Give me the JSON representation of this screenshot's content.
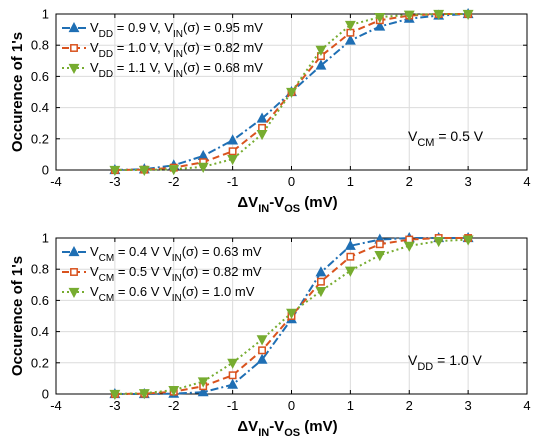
{
  "chart_data": [
    {
      "type": "line",
      "x": [
        -3,
        -2.5,
        -2,
        -1.5,
        -1,
        -0.5,
        0,
        0.5,
        1,
        1.5,
        2,
        2.5,
        3
      ],
      "xlim": [
        -4,
        4
      ],
      "ylim": [
        0,
        1
      ],
      "xticks": [
        "-4",
        "-3",
        "-2",
        "-1",
        "0",
        "1",
        "2",
        "3",
        "4"
      ],
      "yticks": [
        "0",
        "0.2",
        "0.4",
        "0.6",
        "0.8",
        "1"
      ],
      "xlabel": {
        "main": "ΔV",
        "sub1": "IN",
        "mid": "-V",
        "sub2": "OS",
        "unit": " (mV)"
      },
      "ylabel": "Occurence of 1's",
      "grid": true,
      "legend_position": "top-left",
      "annotation": {
        "main": "V",
        "sub": "CM",
        "rest": " = 0.5 V"
      },
      "series": [
        {
          "label_parts": {
            "a": "V",
            "a_sub": "DD",
            "b": " = 0.9 V, V",
            "b_sub": "IN",
            "c": "(σ) = 0.95 mV"
          },
          "color": "#1f6fb4",
          "marker": "triangle-up",
          "dash": "8,3,2,3",
          "values": [
            0,
            0.005,
            0.03,
            0.09,
            0.19,
            0.33,
            0.5,
            0.67,
            0.83,
            0.92,
            0.97,
            0.99,
            1.0
          ]
        },
        {
          "label_parts": {
            "a": "V",
            "a_sub": "DD",
            "b": " = 1.0 V, V",
            "b_sub": "IN",
            "c": "(σ) = 0.82 mV"
          },
          "color": "#d9531e",
          "marker": "square",
          "dash": "7,4",
          "values": [
            0,
            0.002,
            0.015,
            0.05,
            0.12,
            0.27,
            0.5,
            0.73,
            0.88,
            0.96,
            0.99,
            1.0,
            1.0
          ]
        },
        {
          "label_parts": {
            "a": "V",
            "a_sub": "DD",
            "b": " = 1.1 V, V",
            "b_sub": "IN",
            "c": "(σ) = 0.68 mV"
          },
          "color": "#77ac30",
          "marker": "triangle-down",
          "dash": "2,3",
          "values": [
            0,
            0,
            0.005,
            0.02,
            0.07,
            0.23,
            0.5,
            0.77,
            0.93,
            0.98,
            0.995,
            1.0,
            1.0
          ]
        }
      ]
    },
    {
      "type": "line",
      "x": [
        -3,
        -2.5,
        -2,
        -1.5,
        -1,
        -0.5,
        0,
        0.5,
        1,
        1.5,
        2,
        2.5,
        3
      ],
      "xlim": [
        -4,
        4
      ],
      "ylim": [
        0,
        1
      ],
      "xticks": [
        "-4",
        "-3",
        "-2",
        "-1",
        "0",
        "1",
        "2",
        "3",
        "4"
      ],
      "yticks": [
        "0",
        "0.2",
        "0.4",
        "0.6",
        "0.8",
        "1"
      ],
      "xlabel": {
        "main": "ΔV",
        "sub1": "IN",
        "mid": "-V",
        "sub2": "OS",
        "unit": " (mV)"
      },
      "ylabel": "Occurence of 1's",
      "grid": true,
      "legend_position": "top-left",
      "annotation": {
        "main": "V",
        "sub": "DD",
        "rest": " = 1.0 V"
      },
      "series": [
        {
          "label_parts": {
            "a": "V",
            "a_sub": "CM",
            "b": " = 0.4 V V",
            "b_sub": "IN",
            "c": "(σ) = 0.63 mV"
          },
          "color": "#1f6fb4",
          "marker": "triangle-up",
          "dash": "8,3,2,3",
          "values": [
            0,
            0,
            0.002,
            0.012,
            0.06,
            0.22,
            0.48,
            0.78,
            0.95,
            0.99,
            1.0,
            1.0,
            1.0
          ]
        },
        {
          "label_parts": {
            "a": "V",
            "a_sub": "CM",
            "b": " = 0.5 V V",
            "b_sub": "IN",
            "c": "(σ) = 0.82 mV"
          },
          "color": "#d9531e",
          "marker": "square",
          "dash": "7,4",
          "values": [
            0,
            0.002,
            0.015,
            0.05,
            0.12,
            0.28,
            0.5,
            0.72,
            0.88,
            0.96,
            0.99,
            1.0,
            1.0
          ]
        },
        {
          "label_parts": {
            "a": "V",
            "a_sub": "CM",
            "b": " = 0.6 V V",
            "b_sub": "IN",
            "c": "(σ) = 1.0 mV"
          },
          "color": "#77ac30",
          "marker": "triangle-down",
          "dash": "2,3",
          "values": [
            0,
            0.005,
            0.025,
            0.08,
            0.2,
            0.35,
            0.52,
            0.66,
            0.79,
            0.89,
            0.95,
            0.98,
            0.99
          ]
        }
      ]
    }
  ]
}
